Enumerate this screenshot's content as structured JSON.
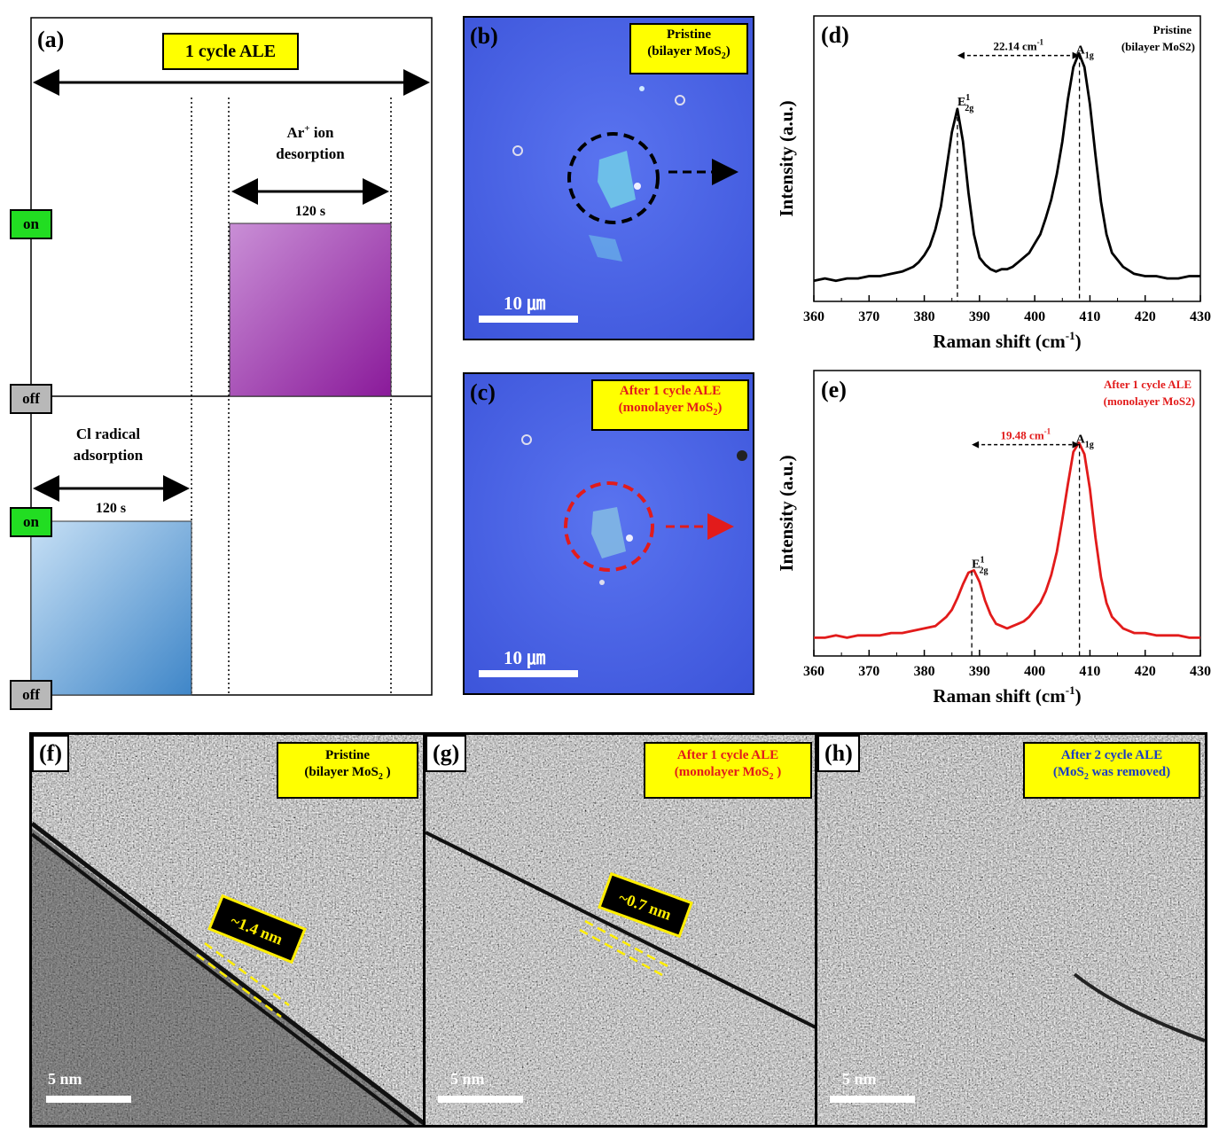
{
  "panel_a": {
    "label": "(a)",
    "title": "1 cycle ALE",
    "ar_label_1": "Ar",
    "ar_sup": "+",
    "ar_label_2": "ion",
    "ar_label_3": "desorption",
    "ar_duration": "120 s",
    "cl_label_1": "Cl radical",
    "cl_label_2": "adsorption",
    "cl_duration": "120 s",
    "on_label": "on",
    "off_label": "off",
    "colors": {
      "ar_bar": "#9b2fa8",
      "cl_bar": "#4a8fcf",
      "tag_on": "#22dd22",
      "tag_off": "#b8b8b8",
      "box": "#ffff00"
    }
  },
  "panel_b": {
    "label": "(b)",
    "box_line1": "Pristine",
    "box_line2": "(bilayer MoS",
    "box_sub": "2",
    "box_end": ")",
    "scale": "10 ㎛",
    "circle_color": "#000000"
  },
  "panel_c": {
    "label": "(c)",
    "box_line1": "After 1 cycle ALE",
    "box_line2": "(monolayer MoS",
    "box_sub": "2",
    "box_end": ")",
    "scale": "10 ㎛",
    "circle_color": "#e21b1b"
  },
  "chart_data": [
    {
      "type": "line",
      "panel": "(d)",
      "xlabel": "Raman shift (cm",
      "xlabel_sup": "-1",
      "xlabel_end": ")",
      "ylabel": "Intensity (a.u.)",
      "xlim": [
        360,
        430
      ],
      "xticks": [
        "360",
        "370",
        "380",
        "390",
        "400",
        "410",
        "420",
        "430"
      ],
      "annotation_title": "Pristine",
      "annotation_sub": "(bilayer MoS2)",
      "peak_sep_label": "22.14 cm",
      "peak_sep_sup": "-1",
      "peaks": [
        {
          "label": "E",
          "sup": "1",
          "sub": "2g",
          "x": 386.0
        },
        {
          "label": "A",
          "sub": "1g",
          "x": 408.1
        }
      ],
      "series": [
        {
          "color": "#000000",
          "x": [
            360,
            362,
            364,
            366,
            368,
            370,
            372,
            374,
            376,
            378,
            379,
            380,
            381,
            382,
            383,
            384,
            385,
            386,
            387,
            388,
            389,
            390,
            391,
            392,
            393,
            394,
            395,
            396,
            397,
            398,
            399,
            400,
            401,
            402,
            403,
            404,
            405,
            406,
            407,
            408,
            409,
            410,
            411,
            412,
            413,
            414,
            416,
            418,
            420,
            422,
            424,
            426,
            428,
            430
          ],
          "y": [
            0.02,
            0.03,
            0.02,
            0.03,
            0.03,
            0.04,
            0.04,
            0.05,
            0.06,
            0.08,
            0.1,
            0.13,
            0.17,
            0.24,
            0.34,
            0.5,
            0.66,
            0.76,
            0.62,
            0.4,
            0.22,
            0.12,
            0.09,
            0.07,
            0.06,
            0.07,
            0.07,
            0.08,
            0.1,
            0.12,
            0.14,
            0.18,
            0.22,
            0.29,
            0.37,
            0.48,
            0.62,
            0.8,
            0.94,
            1.0,
            0.94,
            0.78,
            0.56,
            0.36,
            0.22,
            0.14,
            0.08,
            0.05,
            0.04,
            0.04,
            0.03,
            0.03,
            0.04,
            0.04
          ]
        }
      ]
    },
    {
      "type": "line",
      "panel": "(e)",
      "xlabel": "Raman shift (cm",
      "xlabel_sup": "-1",
      "xlabel_end": ")",
      "ylabel": "Intensity (a.u.)",
      "xlim": [
        360,
        430
      ],
      "xticks": [
        "360",
        "370",
        "380",
        "390",
        "400",
        "410",
        "420",
        "430"
      ],
      "annotation_title": "After 1 cycle ALE",
      "annotation_sub": "(monolayer MoS2)",
      "peak_sep_label": "19.48 cm",
      "peak_sep_sup": "-1",
      "peaks": [
        {
          "label": "E",
          "sup": "1",
          "sub": "2g",
          "x": 388.6
        },
        {
          "label": "A",
          "sub": "1g",
          "x": 408.1
        }
      ],
      "series": [
        {
          "color": "#e21b1b",
          "x": [
            360,
            362,
            364,
            366,
            368,
            370,
            372,
            374,
            376,
            378,
            380,
            382,
            384,
            385,
            386,
            387,
            388,
            389,
            390,
            391,
            392,
            393,
            394,
            395,
            396,
            397,
            398,
            399,
            400,
            401,
            402,
            403,
            404,
            405,
            406,
            407,
            408,
            409,
            410,
            411,
            412,
            413,
            414,
            416,
            418,
            420,
            422,
            424,
            426,
            428,
            430
          ],
          "y": [
            0.01,
            0.01,
            0.02,
            0.01,
            0.02,
            0.02,
            0.02,
            0.03,
            0.03,
            0.04,
            0.05,
            0.06,
            0.1,
            0.13,
            0.18,
            0.24,
            0.29,
            0.3,
            0.25,
            0.17,
            0.11,
            0.07,
            0.06,
            0.05,
            0.06,
            0.07,
            0.08,
            0.1,
            0.13,
            0.16,
            0.21,
            0.28,
            0.38,
            0.52,
            0.67,
            0.81,
            0.85,
            0.8,
            0.65,
            0.44,
            0.27,
            0.16,
            0.1,
            0.05,
            0.03,
            0.03,
            0.02,
            0.02,
            0.02,
            0.01,
            0.01
          ]
        }
      ]
    }
  ],
  "panel_f": {
    "label": "(f)",
    "box_line1": "Pristine",
    "box_line2": "(bilayer  MoS",
    "box_sub": "2",
    "box_end": " )",
    "thickness": "~1.4 nm",
    "scale": "5 nm"
  },
  "panel_g": {
    "label": "(g)",
    "box_line1": "After 1 cycle ALE",
    "box_line2": "(monolayer MoS",
    "box_sub": "2",
    "box_end": " )",
    "thickness": "~0.7 nm",
    "scale": "5 nm"
  },
  "panel_h": {
    "label": "(h)",
    "box_line1": "After 2 cycle ALE",
    "box_line2": "(MoS",
    "box_sub": "2",
    "box_end": " was removed)",
    "scale": "5 nm"
  }
}
